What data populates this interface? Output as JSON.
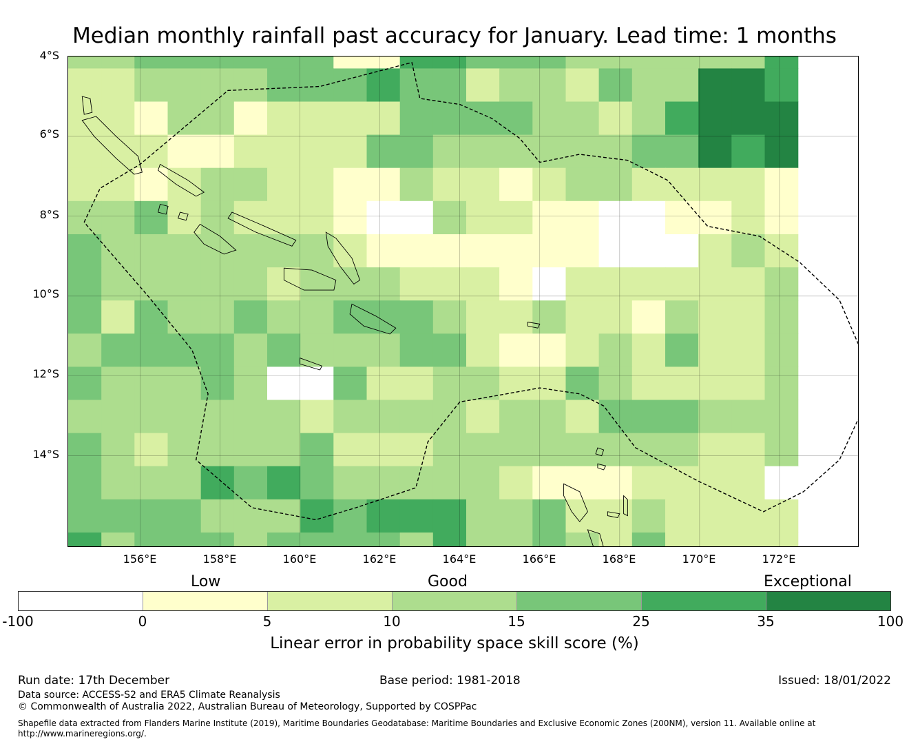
{
  "title": "Median monthly rainfall past accuracy for January. Lead time: 1 months",
  "map": {
    "lon_range": [
      154.2,
      174.0
    ],
    "lat_range": [
      -4.0,
      -16.3
    ],
    "cell_size_deg": 0.83,
    "grid_origin_lon": 154.2,
    "grid_origin_lat": -3.47,
    "lat_ticks": [
      {
        "value": -4,
        "label": "4°S"
      },
      {
        "value": -6,
        "label": "6°S"
      },
      {
        "value": -8,
        "label": "8°S"
      },
      {
        "value": -10,
        "label": "10°S"
      },
      {
        "value": -12,
        "label": "12°S"
      },
      {
        "value": -14,
        "label": "14°S"
      }
    ],
    "lon_ticks": [
      {
        "value": 156,
        "label": "156°E"
      },
      {
        "value": 158,
        "label": "158°E"
      },
      {
        "value": 160,
        "label": "160°E"
      },
      {
        "value": 162,
        "label": "162°E"
      },
      {
        "value": 164,
        "label": "164°E"
      },
      {
        "value": 166,
        "label": "166°E"
      },
      {
        "value": 168,
        "label": "168°E"
      },
      {
        "value": 170,
        "label": "170°E"
      },
      {
        "value": 172,
        "label": "172°E"
      }
    ],
    "grid_classes": [
      "3344444411554443333335",
      "2233334445442332433665",
      "2213312222444433235666",
      "2221122224433333344656",
      "2212332211322123322221",
      "3342322210032211001121",
      "4333333321111111000232",
      "4333332333222102222223",
      "4243343344432232213223",
      "3444434333442112324223",
      "4333430042233224322223",
      "3333333233332332444333",
      "4323333422233333333223",
      "4333545433333211122220",
      "4444333545553342232222",
      "5344434444353343242222",
      "4444444444344344324332",
      "5444333333543333333332",
      "5533333333535322231133",
      "5555433332553322332312",
      "4455533355353322333312",
      "4555433333353321245212"
    ],
    "boundary_lonlat": [
      [
        154.6,
        -8.15
      ],
      [
        155.0,
        -7.3
      ],
      [
        156.0,
        -6.7
      ],
      [
        158.2,
        -4.85
      ],
      [
        160.5,
        -4.75
      ],
      [
        162.8,
        -4.15
      ],
      [
        163.0,
        -5.05
      ],
      [
        164.0,
        -5.2
      ],
      [
        164.8,
        -5.55
      ],
      [
        165.5,
        -6.05
      ],
      [
        166.0,
        -6.65
      ],
      [
        167.0,
        -6.45
      ],
      [
        168.2,
        -6.6
      ],
      [
        169.2,
        -7.1
      ],
      [
        170.2,
        -8.25
      ],
      [
        171.5,
        -8.5
      ],
      [
        172.5,
        -9.15
      ],
      [
        173.5,
        -10.1
      ],
      [
        174.1,
        -11.5
      ],
      [
        174.1,
        -12.8
      ],
      [
        173.5,
        -14.1
      ],
      [
        172.6,
        -14.9
      ],
      [
        171.6,
        -15.4
      ],
      [
        170.0,
        -14.65
      ],
      [
        168.4,
        -13.8
      ],
      [
        167.6,
        -12.75
      ],
      [
        167.0,
        -12.45
      ],
      [
        166.0,
        -12.3
      ],
      [
        164.6,
        -12.55
      ],
      [
        164.0,
        -12.65
      ],
      [
        163.2,
        -13.65
      ],
      [
        162.9,
        -14.8
      ],
      [
        161.4,
        -15.3
      ],
      [
        160.4,
        -15.6
      ],
      [
        158.8,
        -15.3
      ],
      [
        157.4,
        -14.1
      ],
      [
        157.7,
        -12.45
      ],
      [
        157.3,
        -11.35
      ],
      [
        156.2,
        -10.0
      ],
      [
        154.6,
        -8.15
      ]
    ],
    "islands": [
      {
        "name": "Bougainville",
        "coords": [
          [
            154.55,
            -5.6
          ],
          [
            154.9,
            -5.5
          ],
          [
            155.4,
            -6.0
          ],
          [
            155.95,
            -6.5
          ],
          [
            156.05,
            -6.9
          ],
          [
            155.85,
            -6.95
          ],
          [
            155.4,
            -6.55
          ],
          [
            154.85,
            -6.0
          ],
          [
            154.55,
            -5.6
          ]
        ]
      },
      {
        "name": "Buka",
        "coords": [
          [
            154.55,
            -5.0
          ],
          [
            154.75,
            -5.05
          ],
          [
            154.8,
            -5.4
          ],
          [
            154.6,
            -5.45
          ],
          [
            154.55,
            -5.0
          ]
        ]
      },
      {
        "name": "Choiseul",
        "coords": [
          [
            156.5,
            -6.7
          ],
          [
            157.2,
            -7.1
          ],
          [
            157.6,
            -7.4
          ],
          [
            157.4,
            -7.5
          ],
          [
            156.9,
            -7.2
          ],
          [
            156.45,
            -6.85
          ],
          [
            156.5,
            -6.7
          ]
        ]
      },
      {
        "name": "Santa Isabel",
        "coords": [
          [
            158.3,
            -7.9
          ],
          [
            159.0,
            -8.2
          ],
          [
            159.9,
            -8.6
          ],
          [
            159.8,
            -8.75
          ],
          [
            158.9,
            -8.4
          ],
          [
            158.2,
            -8.05
          ],
          [
            158.3,
            -7.9
          ]
        ]
      },
      {
        "name": "New Georgia",
        "coords": [
          [
            157.5,
            -8.2
          ],
          [
            158.0,
            -8.5
          ],
          [
            158.4,
            -8.85
          ],
          [
            158.1,
            -8.95
          ],
          [
            157.6,
            -8.7
          ],
          [
            157.35,
            -8.4
          ],
          [
            157.5,
            -8.2
          ]
        ]
      },
      {
        "name": "Vella Lavella",
        "coords": [
          [
            156.5,
            -7.7
          ],
          [
            156.7,
            -7.75
          ],
          [
            156.65,
            -7.95
          ],
          [
            156.45,
            -7.9
          ],
          [
            156.5,
            -7.7
          ]
        ]
      },
      {
        "name": "Kolombangara",
        "coords": [
          [
            157.0,
            -7.9
          ],
          [
            157.2,
            -7.95
          ],
          [
            157.15,
            -8.1
          ],
          [
            156.95,
            -8.05
          ],
          [
            157.0,
            -7.9
          ]
        ]
      },
      {
        "name": "Guadalcanal",
        "coords": [
          [
            159.6,
            -9.3
          ],
          [
            160.3,
            -9.35
          ],
          [
            160.9,
            -9.6
          ],
          [
            160.85,
            -9.85
          ],
          [
            160.1,
            -9.85
          ],
          [
            159.6,
            -9.6
          ],
          [
            159.6,
            -9.3
          ]
        ]
      },
      {
        "name": "Malaita",
        "coords": [
          [
            160.65,
            -8.4
          ],
          [
            160.9,
            -8.55
          ],
          [
            161.3,
            -9.05
          ],
          [
            161.5,
            -9.6
          ],
          [
            161.35,
            -9.7
          ],
          [
            161.0,
            -9.25
          ],
          [
            160.7,
            -8.75
          ],
          [
            160.65,
            -8.4
          ]
        ]
      },
      {
        "name": "Makira",
        "coords": [
          [
            161.3,
            -10.2
          ],
          [
            161.9,
            -10.5
          ],
          [
            162.4,
            -10.8
          ],
          [
            162.25,
            -10.95
          ],
          [
            161.6,
            -10.75
          ],
          [
            161.25,
            -10.45
          ],
          [
            161.3,
            -10.2
          ]
        ]
      },
      {
        "name": "Rennell",
        "coords": [
          [
            160.0,
            -11.55
          ],
          [
            160.55,
            -11.75
          ],
          [
            160.5,
            -11.85
          ],
          [
            160.0,
            -11.7
          ],
          [
            160.0,
            -11.55
          ]
        ]
      },
      {
        "name": "Espiritu Santo",
        "coords": [
          [
            166.6,
            -14.7
          ],
          [
            167.0,
            -14.9
          ],
          [
            167.2,
            -15.4
          ],
          [
            167.0,
            -15.65
          ],
          [
            166.8,
            -15.4
          ],
          [
            166.6,
            -15.0
          ],
          [
            166.6,
            -14.7
          ]
        ]
      },
      {
        "name": "Malekula",
        "coords": [
          [
            167.2,
            -15.85
          ],
          [
            167.5,
            -15.95
          ],
          [
            167.6,
            -16.3
          ],
          [
            167.35,
            -16.3
          ],
          [
            167.2,
            -15.85
          ]
        ]
      },
      {
        "name": "Maewo",
        "coords": [
          [
            168.1,
            -15.0
          ],
          [
            168.2,
            -15.1
          ],
          [
            168.2,
            -15.5
          ],
          [
            168.1,
            -15.45
          ],
          [
            168.1,
            -15.0
          ]
        ]
      },
      {
        "name": "Vanua Lava",
        "coords": [
          [
            167.45,
            -13.8
          ],
          [
            167.6,
            -13.85
          ],
          [
            167.55,
            -14.0
          ],
          [
            167.4,
            -13.95
          ],
          [
            167.45,
            -13.8
          ]
        ]
      },
      {
        "name": "Gaua",
        "coords": [
          [
            167.45,
            -14.2
          ],
          [
            167.65,
            -14.25
          ],
          [
            167.6,
            -14.35
          ],
          [
            167.45,
            -14.3
          ],
          [
            167.45,
            -14.2
          ]
        ]
      },
      {
        "name": "Ndende",
        "coords": [
          [
            165.7,
            -10.65
          ],
          [
            166.0,
            -10.7
          ],
          [
            165.95,
            -10.8
          ],
          [
            165.7,
            -10.75
          ],
          [
            165.7,
            -10.65
          ]
        ]
      },
      {
        "name": "Pentecost-Ambae",
        "coords": [
          [
            167.7,
            -15.4
          ],
          [
            168.0,
            -15.45
          ],
          [
            167.95,
            -15.55
          ],
          [
            167.7,
            -15.5
          ],
          [
            167.7,
            -15.4
          ]
        ]
      }
    ]
  },
  "legend": {
    "category_labels": {
      "low": "Low",
      "good": "Good",
      "exceptional": "Exceptional"
    },
    "colors": [
      "#ffffff",
      "#ffffcc",
      "#d9f0a3",
      "#addd8e",
      "#78c679",
      "#41ab5d",
      "#238443"
    ],
    "ticks": [
      "-100",
      "0",
      "5",
      "10",
      "15",
      "25",
      "35",
      "100"
    ],
    "title": "Linear error in probability space skill score (%)"
  },
  "footer": {
    "run_date": "Run date: 17th December",
    "base_period": "Base period: 1981-2018",
    "issued": "Issued: 18/01/2022",
    "data_source": "Data source: ACCESS-S2 and ERA5 Climate Reanalysis",
    "copyright": "© Commonwealth of Australia 2022, Australian Bureau of Meteorology, Supported by COSPPac",
    "shapefile_line1": "Shapefile data extracted from Flanders Marine Institute (2019), Maritime Boundaries Geodatabase: Maritime Boundaries and Exclusive Economic Zones (200NM), version 11. Available online at",
    "shapefile_line2": "http://www.marineregions.org/."
  }
}
